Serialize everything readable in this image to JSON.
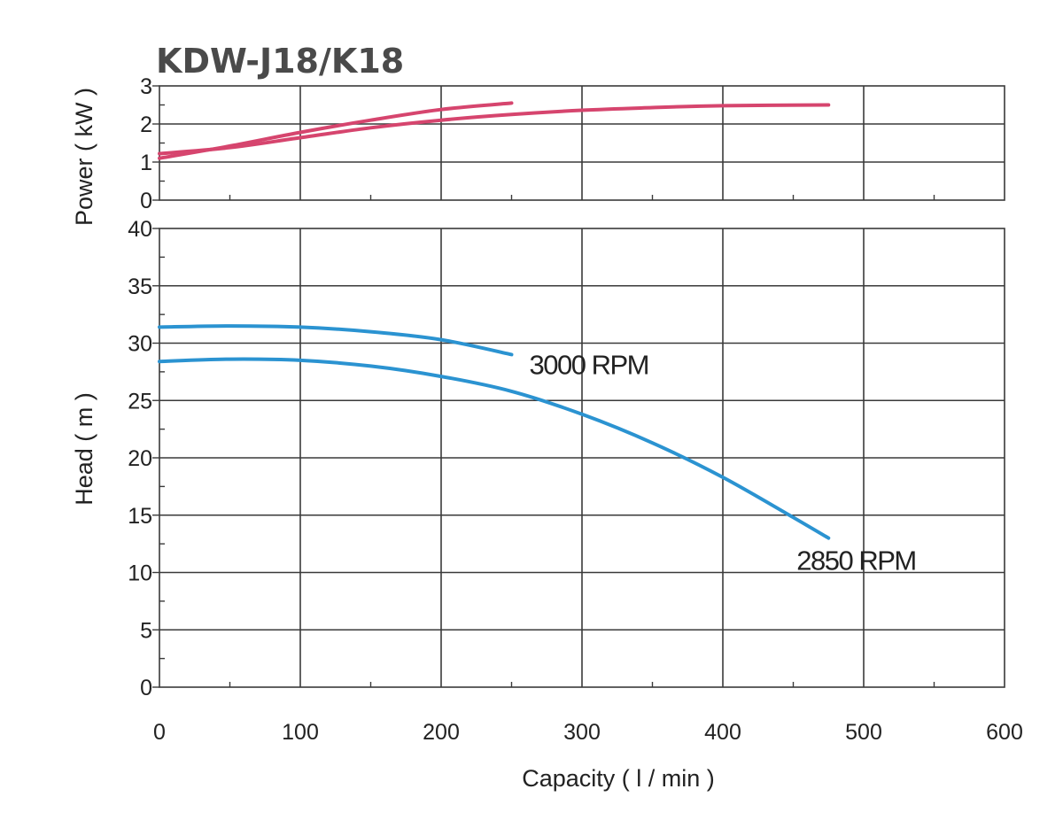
{
  "chart_data": {
    "type": "line",
    "title": "KDW-J18/K18",
    "xlabel": "Capacity ( l / min )",
    "xlim": [
      0,
      600
    ],
    "x_ticks": [
      "0",
      "100",
      "200",
      "300",
      "400",
      "500",
      "600"
    ],
    "colors": {
      "power": "#d6456e",
      "head": "#2b93d1"
    },
    "panels": [
      {
        "id": "power",
        "ylabel": "Power ( kW )",
        "ylim": [
          0,
          3
        ],
        "y_ticks": [
          "0",
          "1",
          "2",
          "3"
        ],
        "series": [
          {
            "id": "power-3000",
            "x": [
              0,
              50,
              100,
              150,
              200,
              250
            ],
            "y": [
              1.1,
              1.42,
              1.78,
              2.1,
              2.38,
              2.55
            ]
          },
          {
            "id": "power-2850",
            "x": [
              0,
              50,
              100,
              150,
              200,
              250,
              300,
              350,
              400,
              475
            ],
            "y": [
              1.22,
              1.38,
              1.64,
              1.9,
              2.1,
              2.25,
              2.36,
              2.43,
              2.48,
              2.5
            ]
          }
        ]
      },
      {
        "id": "head",
        "ylabel": "Head ( m )",
        "ylim": [
          0,
          40
        ],
        "y_ticks": [
          "0",
          "5",
          "10",
          "15",
          "20",
          "25",
          "30",
          "35",
          "40"
        ],
        "series": [
          {
            "name": "3000 RPM",
            "x": [
              0,
              50,
              100,
              150,
              200,
              250
            ],
            "y": [
              31.4,
              31.5,
              31.4,
              31.0,
              30.3,
              29.0
            ]
          },
          {
            "name": "2850 RPM",
            "x": [
              0,
              50,
              100,
              150,
              200,
              250,
              300,
              350,
              400,
              450,
              475
            ],
            "y": [
              28.4,
              28.6,
              28.5,
              28.0,
              27.1,
              25.8,
              23.8,
              21.3,
              18.3,
              14.8,
              13.0
            ]
          }
        ]
      }
    ]
  }
}
